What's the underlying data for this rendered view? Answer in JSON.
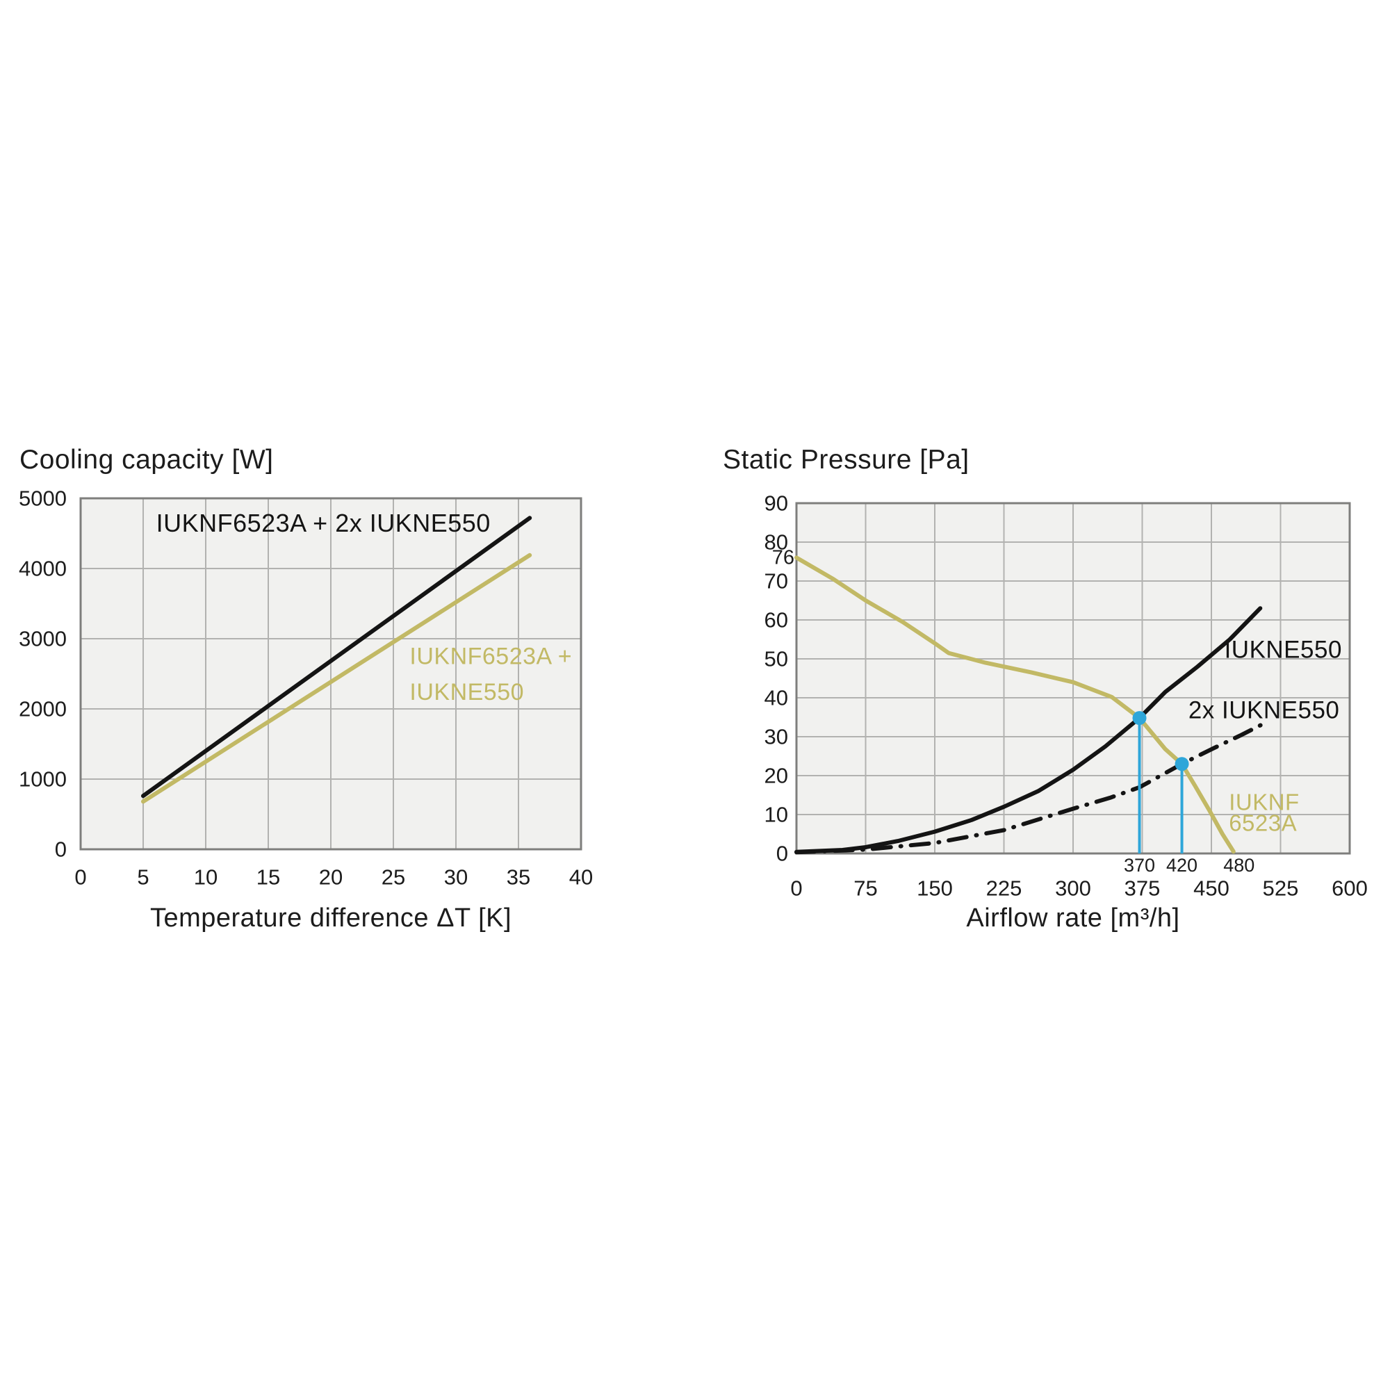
{
  "colors": {
    "black_line": "#141414",
    "olive": "#c2b965",
    "blue": "#2ea6d9",
    "grid": "#b2b2b0",
    "border": "#7e7e7c",
    "plot_bg": "#f1f1ef",
    "text": "#1c1c1c"
  },
  "chart_data": [
    {
      "type": "line",
      "name": "cooling-capacity-chart",
      "title": "Cooling capacity [W]",
      "xlabel": "Temperature difference ΔT [K]",
      "ylabel": "Cooling capacity [W]",
      "xlim": [
        0,
        40
      ],
      "ylim": [
        0,
        5000
      ],
      "xticks": [
        0,
        5,
        10,
        15,
        20,
        25,
        30,
        35,
        40
      ],
      "yticks": [
        0,
        1000,
        2000,
        3000,
        4000,
        5000
      ],
      "grid": true,
      "legend_position": "in-plot-labels",
      "series": [
        {
          "name": "IUKNF6523A + 2x IUKNE550",
          "color": "black",
          "style": "solid",
          "points": [
            [
              5,
              760
            ],
            [
              35.9,
              4720
            ]
          ]
        },
        {
          "name": "IUKNF6523A + IUKNE550",
          "color": "olive",
          "style": "solid",
          "points": [
            [
              5,
              680
            ],
            [
              35.9,
              4190
            ]
          ]
        }
      ],
      "labels": [
        {
          "text": "IUKNF6523A + 2x IUKNE550",
          "x": 19.4,
          "y": 4650,
          "color": "black",
          "anchor": "middle",
          "size": 36
        },
        {
          "text": "IUKNF6523A +",
          "x": 26.3,
          "y": 2750,
          "color": "olive",
          "anchor": "start",
          "size": 34
        },
        {
          "text": "IUKNE550",
          "x": 26.3,
          "y": 2240,
          "color": "olive",
          "anchor": "start",
          "size": 34
        }
      ],
      "markers": [],
      "droplines": [],
      "annotations": []
    },
    {
      "type": "line",
      "name": "static-pressure-chart",
      "title": "Static Pressure [Pa]",
      "xlabel": "Airflow rate [m³/h]",
      "ylabel": "Static Pressure [Pa]",
      "xlim": [
        0,
        600
      ],
      "ylim": [
        0,
        90
      ],
      "xticks": [
        0,
        75,
        150,
        225,
        300,
        375,
        450,
        525,
        600
      ],
      "yticks": [
        0,
        10,
        20,
        30,
        40,
        50,
        60,
        70,
        80,
        90
      ],
      "extra_ytick": {
        "value": 76,
        "label": "76"
      },
      "grid": true,
      "legend_position": "in-plot-labels",
      "series": [
        {
          "name": "IUKNF6523A",
          "color": "olive",
          "style": "solid",
          "points": [
            [
              0,
              76
            ],
            [
              40,
              70.5
            ],
            [
              75,
              65
            ],
            [
              115,
              59.5
            ],
            [
              150,
              54
            ],
            [
              165,
              51.5
            ],
            [
              205,
              49
            ],
            [
              255,
              46.5
            ],
            [
              300,
              44
            ],
            [
              342,
              40.2
            ],
            [
              372,
              34.8
            ],
            [
              400,
              26.8
            ],
            [
              418,
              23
            ],
            [
              432,
              17.5
            ],
            [
              448,
              11
            ],
            [
              462,
              5
            ],
            [
              474,
              0.5
            ]
          ]
        },
        {
          "name": "IUKNE550",
          "color": "black",
          "style": "solid",
          "points": [
            [
              0,
              0.4
            ],
            [
              50,
              0.9
            ],
            [
              75,
              1.6
            ],
            [
              110,
              3.2
            ],
            [
              150,
              5.6
            ],
            [
              190,
              8.6
            ],
            [
              225,
              12
            ],
            [
              262,
              16
            ],
            [
              300,
              21.5
            ],
            [
              335,
              27.5
            ],
            [
              372,
              34.8
            ],
            [
              400,
              41.5
            ],
            [
              435,
              48
            ],
            [
              470,
              55
            ],
            [
              503,
              63
            ]
          ]
        },
        {
          "name": "2x IUKNE550",
          "color": "black",
          "style": "dashdot",
          "points": [
            [
              0,
              0.3
            ],
            [
              75,
              1
            ],
            [
              150,
              2.7
            ],
            [
              225,
              6
            ],
            [
              300,
              11.5
            ],
            [
              340,
              14.3
            ],
            [
              372,
              17
            ],
            [
              418,
              23
            ],
            [
              452,
              27
            ],
            [
              482,
              30.4
            ],
            [
              512,
              34
            ]
          ]
        }
      ],
      "markers": [
        {
          "x": 372,
          "y": 34.8
        },
        {
          "x": 418,
          "y": 23
        }
      ],
      "droplines": [
        {
          "x": 372,
          "y": 34.8,
          "label": "370"
        },
        {
          "x": 418,
          "y": 23,
          "label": "420"
        }
      ],
      "annotations": [
        {
          "text": "480",
          "x": 480
        }
      ],
      "labels": [
        {
          "text": "IUKNE550",
          "x": 464,
          "y": 52.3,
          "color": "black",
          "anchor": "start",
          "size": 35
        },
        {
          "text": "2x IUKNE550",
          "x": 425,
          "y": 36.8,
          "color": "black",
          "anchor": "start",
          "size": 35
        },
        {
          "text": "IUKNF",
          "x": 469,
          "y": 13.2,
          "color": "olive",
          "anchor": "start",
          "size": 33
        },
        {
          "text": "6523A",
          "x": 469,
          "y": 7.9,
          "color": "olive",
          "anchor": "start",
          "size": 33
        }
      ]
    }
  ]
}
